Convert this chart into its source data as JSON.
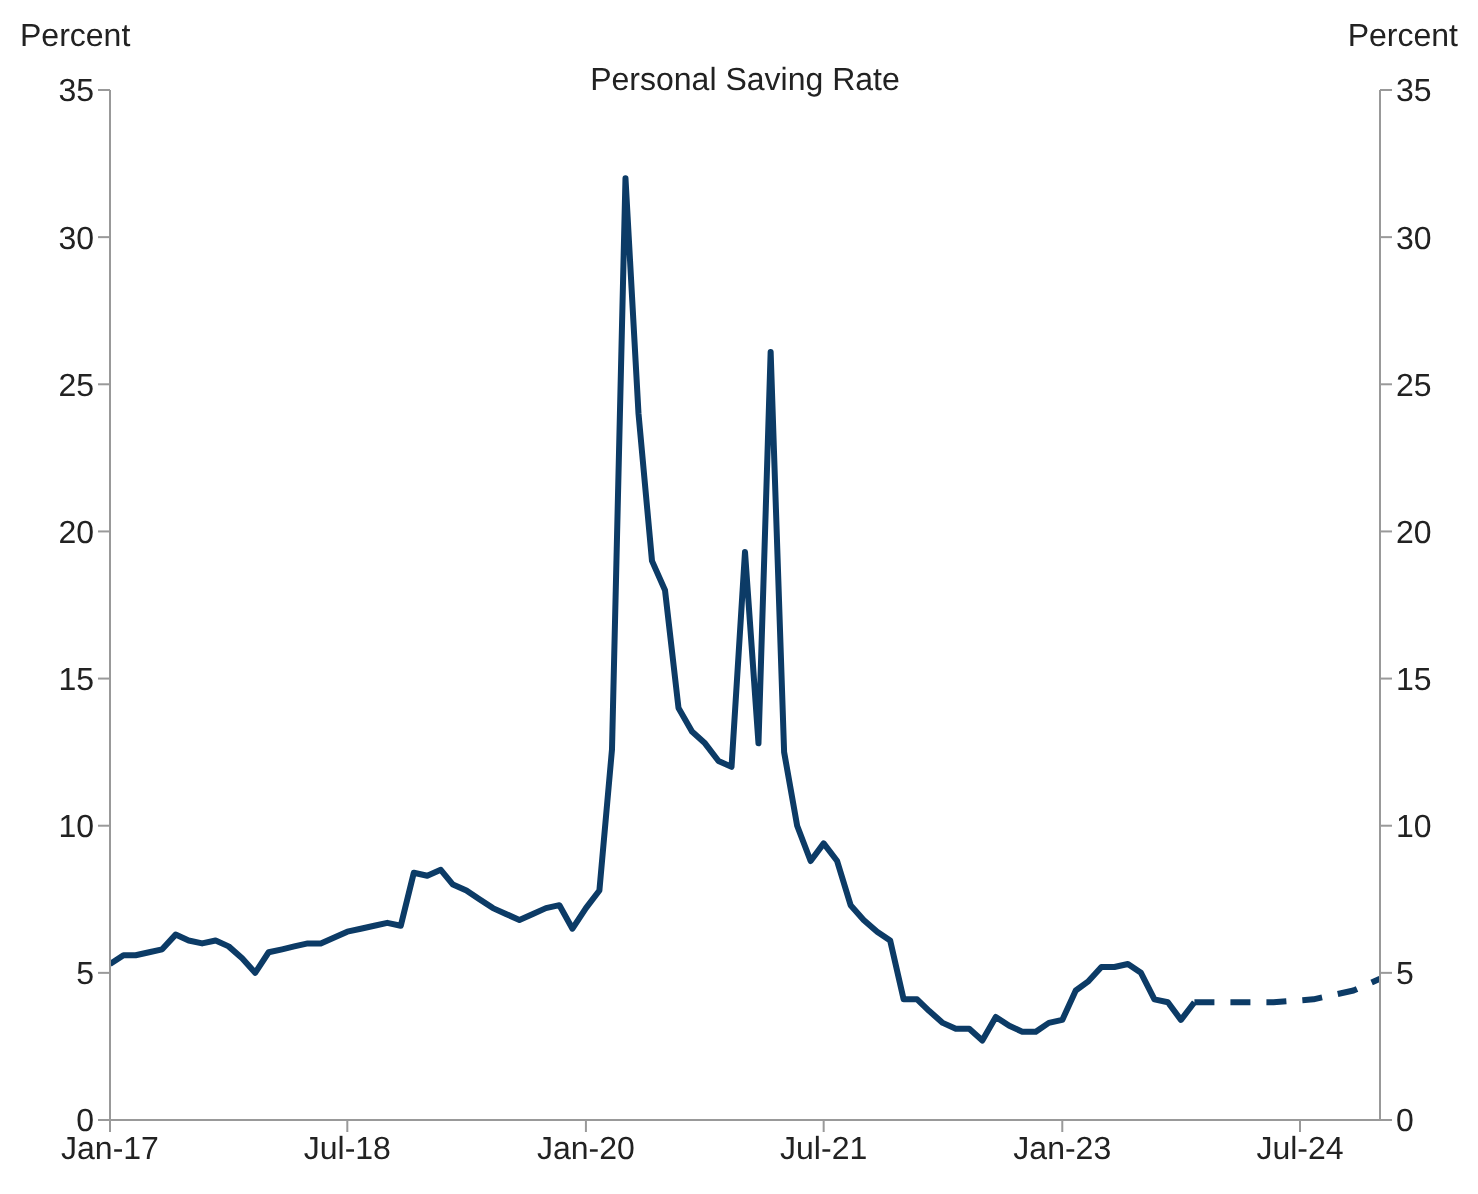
{
  "chart_data": {
    "type": "line",
    "title": "Personal Saving Rate",
    "ylabel": "Percent",
    "y2label": "Percent",
    "xlim": [
      "2017-01",
      "2025-01"
    ],
    "xticks": [
      {
        "value": "2017-01",
        "label": "Jan-17"
      },
      {
        "value": "2018-07",
        "label": "Jul-18"
      },
      {
        "value": "2020-01",
        "label": "Jan-20"
      },
      {
        "value": "2021-07",
        "label": "Jul-21"
      },
      {
        "value": "2023-01",
        "label": "Jan-23"
      },
      {
        "value": "2024-07",
        "label": "Jul-24"
      }
    ],
    "ylim": [
      0,
      35
    ],
    "yticks": [
      0,
      5,
      10,
      15,
      20,
      25,
      30,
      35
    ],
    "y2lim": [
      0,
      35
    ],
    "y2ticks": [
      0,
      5,
      10,
      15,
      20,
      25,
      30,
      35
    ],
    "series": [
      {
        "color": "#0c3b66",
        "line_style": "solid",
        "x": [
          "2017-01",
          "2017-02",
          "2017-03",
          "2017-04",
          "2017-05",
          "2017-06",
          "2017-07",
          "2017-08",
          "2017-09",
          "2017-10",
          "2017-11",
          "2017-12",
          "2018-01",
          "2018-02",
          "2018-03",
          "2018-04",
          "2018-05",
          "2018-06",
          "2018-07",
          "2018-08",
          "2018-09",
          "2018-10",
          "2018-11",
          "2018-12",
          "2019-01",
          "2019-02",
          "2019-03",
          "2019-04",
          "2019-05",
          "2019-06",
          "2019-07",
          "2019-08",
          "2019-09",
          "2019-10",
          "2019-11",
          "2019-12",
          "2020-01",
          "2020-02",
          "2020-03",
          "2020-04",
          "2020-05",
          "2020-06",
          "2020-07",
          "2020-08",
          "2020-09",
          "2020-10",
          "2020-11",
          "2020-12",
          "2021-01",
          "2021-02",
          "2021-03",
          "2021-04",
          "2021-05",
          "2021-06",
          "2021-07",
          "2021-08",
          "2021-09",
          "2021-10",
          "2021-11",
          "2021-12",
          "2022-01",
          "2022-02",
          "2022-03",
          "2022-04",
          "2022-05",
          "2022-06",
          "2022-07",
          "2022-08",
          "2022-09",
          "2022-10",
          "2022-11",
          "2022-12",
          "2023-01",
          "2023-02",
          "2023-03",
          "2023-04",
          "2023-05",
          "2023-06",
          "2023-07",
          "2023-08",
          "2023-09",
          "2023-10",
          "2023-11"
        ],
        "values": [
          5.3,
          5.6,
          5.6,
          5.7,
          5.8,
          6.3,
          6.1,
          6.0,
          6.1,
          5.9,
          5.5,
          5.0,
          5.7,
          5.8,
          5.9,
          6.0,
          6.0,
          6.2,
          6.4,
          6.5,
          6.6,
          6.7,
          6.6,
          8.4,
          8.3,
          8.5,
          8.0,
          7.8,
          7.5,
          7.2,
          7.0,
          6.8,
          7.0,
          7.2,
          7.3,
          6.5,
          7.2,
          7.8,
          12.6,
          32.0,
          24.0,
          19.0,
          18.0,
          14.0,
          13.2,
          12.8,
          12.2,
          12.0,
          19.3,
          12.8,
          26.1,
          12.5,
          10.0,
          8.8,
          9.4,
          8.8,
          7.3,
          6.8,
          6.4,
          6.1,
          4.1,
          4.1,
          3.7,
          3.3,
          3.1,
          3.1,
          2.7,
          3.5,
          3.2,
          3.0,
          3.0,
          3.3,
          3.4,
          4.4,
          4.7,
          5.2,
          5.2,
          5.3,
          5.0,
          4.1,
          4.0,
          3.4,
          4.0
        ]
      },
      {
        "color": "#0c3b66",
        "line_style": "dashed",
        "x": [
          "2023-11",
          "2024-02",
          "2024-05",
          "2024-08",
          "2024-11",
          "2025-01"
        ],
        "values": [
          4.0,
          4.0,
          4.0,
          4.1,
          4.4,
          4.8
        ]
      }
    ]
  }
}
